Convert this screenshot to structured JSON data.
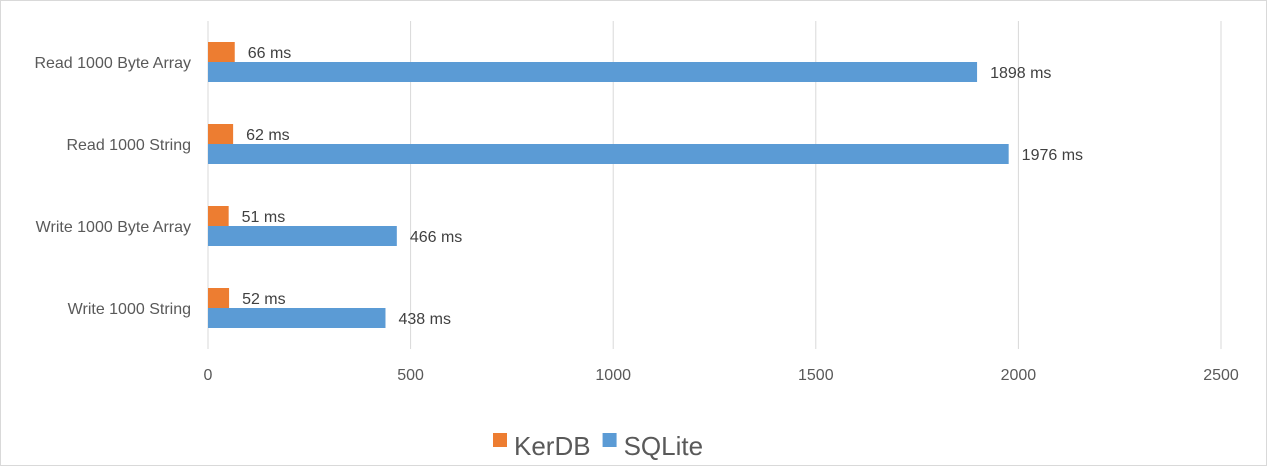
{
  "chart_data": {
    "type": "bar",
    "orientation": "horizontal",
    "categories": [
      "Read 1000 Byte Array",
      "Read 1000 String",
      "Write 1000 Byte Array",
      "Write 1000 String"
    ],
    "series": [
      {
        "name": "KerDB",
        "color": "#ed7d31",
        "values": [
          66,
          62,
          51,
          52
        ],
        "labels": [
          "66 ms",
          "62 ms",
          "51 ms",
          "52 ms"
        ]
      },
      {
        "name": "SQLite",
        "color": "#5b9bd5",
        "values": [
          1898,
          1976,
          466,
          438
        ],
        "labels": [
          "1898 ms",
          "1976 ms",
          "466 ms",
          "438 ms"
        ]
      }
    ],
    "xlim": [
      0,
      2500
    ],
    "x_ticks": [
      "0",
      "500",
      "1000",
      "1500",
      "2000",
      "2500"
    ],
    "grid": "vertical",
    "legend_position": "bottom"
  }
}
